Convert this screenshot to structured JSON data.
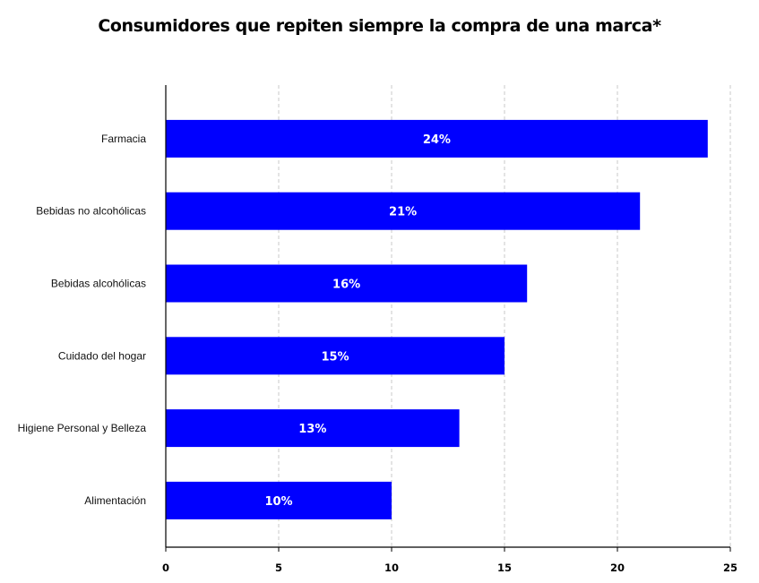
{
  "chart_data": {
    "type": "bar",
    "orientation": "horizontal",
    "title": "Consumidores que repiten siempre la compra de una marca*",
    "xlabel": "",
    "ylabel": "",
    "categories": [
      "Farmacia",
      "Bebidas no alcohólicas",
      "Bebidas alcohólicas",
      "Cuidado del hogar",
      "Higiene Personal y Belleza",
      "Alimentación"
    ],
    "values": [
      24,
      21,
      16,
      15,
      13,
      10
    ],
    "data_labels": [
      "24%",
      "21%",
      "16%",
      "15%",
      "13%",
      "10%"
    ],
    "xlim": [
      0,
      25
    ],
    "xticks": [
      "0",
      "5",
      "10",
      "15",
      "20",
      "25"
    ],
    "grid": "vertical dashed",
    "legend": "none",
    "bar_color": "#0000ff",
    "grid_color": "#c8c8c8",
    "axis_color": "#000000"
  }
}
